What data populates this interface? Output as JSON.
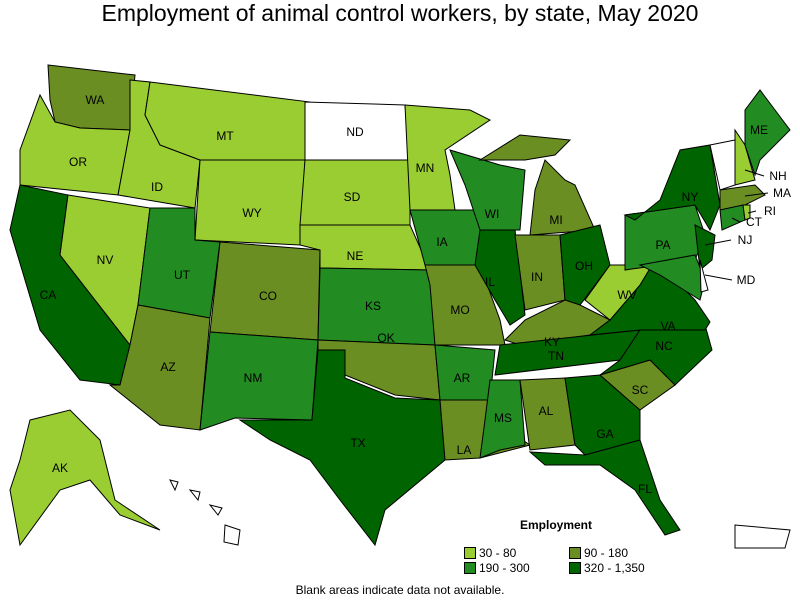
{
  "title": "Employment of animal control workers, by state, May 2020",
  "note": "Blank areas indicate data not available.",
  "legend": {
    "title": "Employment",
    "bins": [
      {
        "label": "30 - 80",
        "color": "#9acd32"
      },
      {
        "label": "90 - 180",
        "color": "#6b8e23"
      },
      {
        "label": "190 - 300",
        "color": "#228b22"
      },
      {
        "label": "320 - 1,350",
        "color": "#006400"
      }
    ],
    "no_data_color": "#ffffff"
  },
  "states": {
    "WA": 1,
    "OR": 0,
    "CA": 3,
    "NV": 0,
    "ID": 0,
    "MT": 0,
    "WY": 0,
    "UT": 2,
    "AZ": 1,
    "CO": 1,
    "NM": 2,
    "ND": -1,
    "SD": 0,
    "NE": 0,
    "KS": 2,
    "OK": 1,
    "TX": 3,
    "MN": 0,
    "IA": 2,
    "MO": 1,
    "AR": 2,
    "LA": 1,
    "WI": 2,
    "IL": 3,
    "MI": 1,
    "IN": 1,
    "OH": 3,
    "KY": 1,
    "TN": 3,
    "MS": 2,
    "AL": 1,
    "GA": 3,
    "FL": 3,
    "SC": 1,
    "NC": 3,
    "VA": 3,
    "WV": 0,
    "PA": 2,
    "NY": 3,
    "NJ": 3,
    "MD": 2,
    "DE": -1,
    "VT": -1,
    "NH": 0,
    "ME": 2,
    "MA": 1,
    "CT": 2,
    "RI": 0,
    "AK": 0,
    "HI": -1,
    "PR": -1
  }
}
